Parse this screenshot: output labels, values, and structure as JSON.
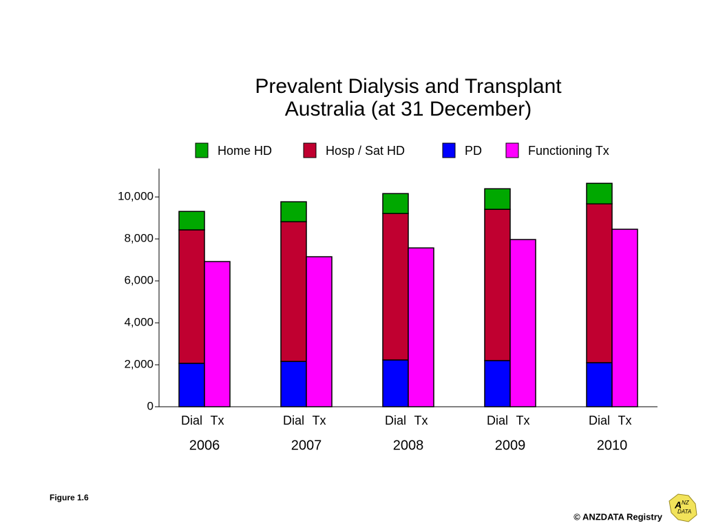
{
  "chart_data": {
    "type": "stacked_grouped_bar",
    "title": [
      "Prevalent Dialysis and Transplant",
      "Australia (at 31 December)"
    ],
    "categories": [
      "2006",
      "2007",
      "2008",
      "2009",
      "2010"
    ],
    "stacks": [
      "Dial",
      "Tx"
    ],
    "series": [
      {
        "name": "Home HD",
        "color": "#00a800",
        "stack": "Dial",
        "values": [
          880,
          950,
          950,
          980,
          980
        ]
      },
      {
        "name": "Hosp / Sat HD",
        "color": "#c00030",
        "stack": "Dial",
        "values": [
          6360,
          6660,
          6980,
          7210,
          7570
        ]
      },
      {
        "name": "PD",
        "color": "#0000ff",
        "stack": "Dial",
        "values": [
          2070,
          2160,
          2230,
          2200,
          2100
        ]
      },
      {
        "name": "Functioning Tx",
        "color": "#ff00ff",
        "stack": "Tx",
        "values": [
          6920,
          7150,
          7570,
          7970,
          8460
        ]
      }
    ],
    "ylim": [
      0,
      11350
    ],
    "yticks": [
      0,
      {
        "value": 2000,
        "label": "2,000"
      },
      {
        "value": 4000,
        "label": "4,000"
      },
      {
        "value": 6000,
        "label": "6,000"
      },
      {
        "value": 8000,
        "label": "8,000"
      },
      {
        "value": 10000,
        "label": "10,000"
      }
    ],
    "legend": "top"
  },
  "footer": {
    "figure": "Figure 1.6",
    "credit": "© ANZDATA Registry",
    "logo": [
      "A",
      "NZ",
      "DATA"
    ]
  }
}
